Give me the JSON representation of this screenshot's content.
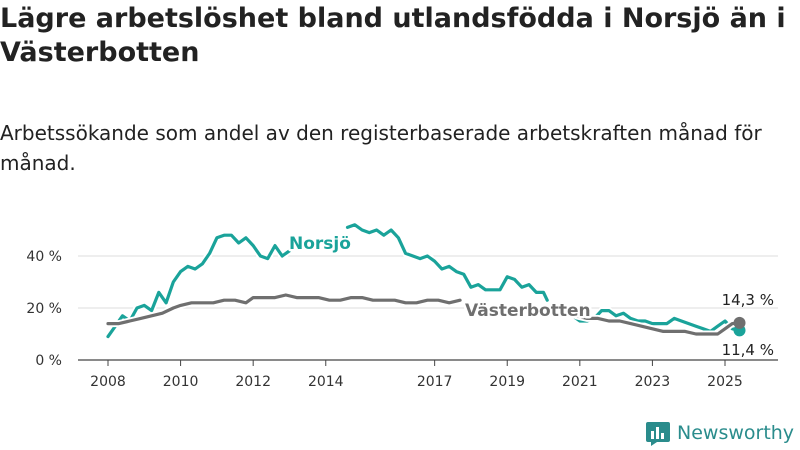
{
  "title": "Lägre arbetslöshet bland utlandsfödda i Norsjö än i Västerbotten",
  "subtitle": "Arbetssökande som andel av den registerbaserade arbetskraften månad för månad.",
  "brand": "Newsworthy",
  "colors": {
    "norsjo": "#1aa39a",
    "vasterbotten": "#6f6f6f",
    "brand": "#2a8c8c"
  },
  "chart_data": {
    "type": "line",
    "ylim": [
      0,
      50
    ],
    "y_ticks": [
      {
        "value": 0,
        "label": "0 %"
      },
      {
        "value": 20,
        "label": "20 %"
      },
      {
        "value": 40,
        "label": "40 %"
      }
    ],
    "x_ticks": [
      {
        "value": 2008,
        "label": "2008"
      },
      {
        "value": 2010,
        "label": "2010"
      },
      {
        "value": 2012,
        "label": "2012"
      },
      {
        "value": 2014,
        "label": "2014"
      },
      {
        "value": 2017,
        "label": "2017"
      },
      {
        "value": 2019,
        "label": "2019"
      },
      {
        "value": 2021,
        "label": "2021"
      },
      {
        "value": 2023,
        "label": "2023"
      },
      {
        "value": 2025,
        "label": "2025"
      }
    ],
    "series": [
      {
        "name": "Norsjö",
        "color": "#1aa39a",
        "end_label": "11,4 %",
        "points": [
          [
            2008.0,
            9
          ],
          [
            2008.2,
            13
          ],
          [
            2008.4,
            17
          ],
          [
            2008.6,
            15
          ],
          [
            2008.8,
            20
          ],
          [
            2009.0,
            21
          ],
          [
            2009.2,
            19
          ],
          [
            2009.4,
            26
          ],
          [
            2009.6,
            22
          ],
          [
            2009.8,
            30
          ],
          [
            2010.0,
            34
          ],
          [
            2010.2,
            36
          ],
          [
            2010.4,
            35
          ],
          [
            2010.6,
            37
          ],
          [
            2010.8,
            41
          ],
          [
            2011.0,
            47
          ],
          [
            2011.2,
            48
          ],
          [
            2011.4,
            48
          ],
          [
            2011.6,
            45
          ],
          [
            2011.8,
            47
          ],
          [
            2012.0,
            44
          ],
          [
            2012.2,
            40
          ],
          [
            2012.4,
            39
          ],
          [
            2012.6,
            44
          ],
          [
            2012.8,
            40
          ],
          [
            2013.0,
            42
          ],
          [
            null,
            null
          ],
          [
            2014.6,
            51
          ],
          [
            2014.8,
            52
          ],
          [
            2015.0,
            50
          ],
          [
            2015.2,
            49
          ],
          [
            2015.4,
            50
          ],
          [
            2015.6,
            48
          ],
          [
            2015.8,
            50
          ],
          [
            2016.0,
            47
          ],
          [
            2016.2,
            41
          ],
          [
            2016.4,
            40
          ],
          [
            2016.6,
            39
          ],
          [
            2016.8,
            40
          ],
          [
            2017.0,
            38
          ],
          [
            2017.2,
            35
          ],
          [
            2017.4,
            36
          ],
          [
            2017.6,
            34
          ],
          [
            2017.8,
            33
          ],
          [
            2018.0,
            28
          ],
          [
            2018.2,
            29
          ],
          [
            2018.4,
            27
          ],
          [
            2018.6,
            27
          ],
          [
            2018.8,
            27
          ],
          [
            2019.0,
            32
          ],
          [
            2019.2,
            31
          ],
          [
            2019.4,
            28
          ],
          [
            2019.6,
            29
          ],
          [
            2019.8,
            26
          ],
          [
            2020.0,
            26
          ],
          [
            2020.1,
            23
          ],
          [
            null,
            null
          ],
          [
            2020.8,
            17
          ],
          [
            2021.0,
            15
          ],
          [
            2021.2,
            15
          ],
          [
            2021.4,
            16
          ],
          [
            2021.6,
            19
          ],
          [
            2021.8,
            19
          ],
          [
            2022.0,
            17
          ],
          [
            2022.2,
            18
          ],
          [
            2022.4,
            16
          ],
          [
            2022.6,
            15
          ],
          [
            2022.8,
            15
          ],
          [
            2023.0,
            14
          ],
          [
            2023.2,
            14
          ],
          [
            2023.4,
            14
          ],
          [
            2023.6,
            16
          ],
          [
            2023.8,
            15
          ],
          [
            2024.0,
            14
          ],
          [
            2024.2,
            13
          ],
          [
            2024.4,
            12
          ],
          [
            2024.6,
            11
          ],
          [
            2024.8,
            13
          ],
          [
            2025.0,
            15
          ],
          [
            2025.2,
            12
          ],
          [
            2025.4,
            11.4
          ]
        ]
      },
      {
        "name": "Västerbotten",
        "color": "#6f6f6f",
        "end_label": "14,3 %",
        "points": [
          [
            2008.0,
            14
          ],
          [
            2008.3,
            14
          ],
          [
            2008.6,
            15
          ],
          [
            2008.9,
            16
          ],
          [
            2009.2,
            17
          ],
          [
            2009.5,
            18
          ],
          [
            2009.8,
            20
          ],
          [
            2010.0,
            21
          ],
          [
            2010.3,
            22
          ],
          [
            2010.6,
            22
          ],
          [
            2010.9,
            22
          ],
          [
            2011.2,
            23
          ],
          [
            2011.5,
            23
          ],
          [
            2011.8,
            22
          ],
          [
            2012.0,
            24
          ],
          [
            2012.3,
            24
          ],
          [
            2012.6,
            24
          ],
          [
            2012.9,
            25
          ],
          [
            2013.2,
            24
          ],
          [
            2013.5,
            24
          ],
          [
            2013.8,
            24
          ],
          [
            2014.1,
            23
          ],
          [
            2014.4,
            23
          ],
          [
            2014.7,
            24
          ],
          [
            2015.0,
            24
          ],
          [
            2015.3,
            23
          ],
          [
            2015.6,
            23
          ],
          [
            2015.9,
            23
          ],
          [
            2016.2,
            22
          ],
          [
            2016.5,
            22
          ],
          [
            2016.8,
            23
          ],
          [
            2017.1,
            23
          ],
          [
            2017.4,
            22
          ],
          [
            2017.7,
            23
          ],
          [
            null,
            null
          ],
          [
            2020.9,
            17
          ],
          [
            2021.2,
            16
          ],
          [
            2021.5,
            16
          ],
          [
            2021.8,
            15
          ],
          [
            2022.1,
            15
          ],
          [
            2022.4,
            14
          ],
          [
            2022.7,
            13
          ],
          [
            2023.0,
            12
          ],
          [
            2023.3,
            11
          ],
          [
            2023.6,
            11
          ],
          [
            2023.9,
            11
          ],
          [
            2024.2,
            10
          ],
          [
            2024.5,
            10
          ],
          [
            2024.8,
            10
          ],
          [
            2025.0,
            12
          ],
          [
            2025.2,
            14
          ],
          [
            2025.4,
            14.3
          ]
        ]
      }
    ]
  }
}
